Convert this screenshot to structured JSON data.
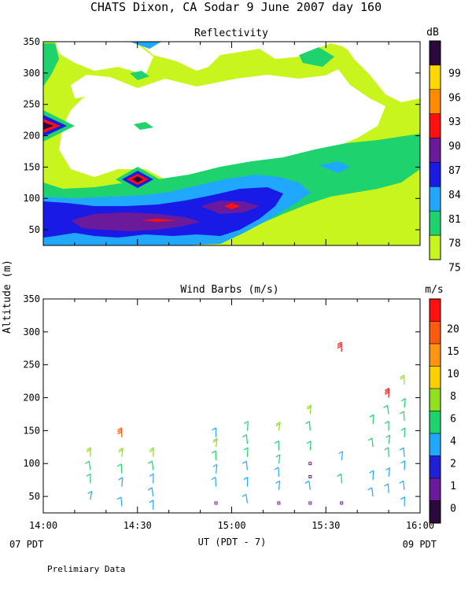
{
  "main_title": "CHATS Dixon, CA  Sodar   9 June 2007  day 160",
  "reflectivity": {
    "title": "Reflectivity",
    "unit": "dB",
    "colorbar": {
      "labels": [
        "99",
        "96",
        "93",
        "90",
        "87",
        "84",
        "81",
        "78",
        "75"
      ],
      "colors": [
        "#2a0a3c",
        "#ffd800",
        "#ff8c00",
        "#ff1010",
        "#6a1a9a",
        "#1a1ae6",
        "#20a8ff",
        "#1ed26e",
        "#c8f51e"
      ]
    },
    "yticks": [
      "350",
      "300",
      "250",
      "200",
      "150",
      "100",
      "50"
    ]
  },
  "wind": {
    "title": "Wind Barbs (m/s)",
    "unit": "m/s",
    "colorbar": {
      "labels": [
        "20",
        "15",
        "10",
        "8",
        "6",
        "4",
        "2",
        "1",
        "0"
      ],
      "colors": [
        "#ff1010",
        "#ff5a10",
        "#ff9410",
        "#ffd000",
        "#90e020",
        "#1ed26e",
        "#20a8ff",
        "#2020d8",
        "#6a1a9a",
        "#2a0a3c"
      ]
    },
    "yticks": [
      "350",
      "300",
      "250",
      "200",
      "150",
      "100",
      "50"
    ]
  },
  "ylabel": "Altitude (m)",
  "xticks": [
    "14:00",
    "14:30",
    "15:00",
    "15:30",
    "16:00"
  ],
  "xlabel": "UT  (PDT - 7)",
  "date_left": "07 PDT",
  "date_right": "09 PDT",
  "footer": "Prelimiary Data",
  "chart_data": [
    {
      "type": "heatmap",
      "title": "Reflectivity",
      "colorbar_unit": "dB",
      "colorbar_ticks": [
        75,
        78,
        81,
        84,
        87,
        90,
        93,
        96,
        99
      ],
      "ylabel": "Altitude (m)",
      "xlabel": "UT  (PDT - 7)",
      "xlim": [
        "14:00",
        "16:00"
      ],
      "ylim": [
        25,
        350
      ],
      "yticks": [
        50,
        100,
        150,
        200,
        250,
        300,
        350
      ]
    },
    {
      "type": "scatter",
      "title": "Wind Barbs (m/s)",
      "colorbar_unit": "m/s",
      "colorbar_ticks": [
        0,
        1,
        2,
        4,
        6,
        8,
        10,
        15,
        20
      ],
      "ylabel": "Altitude (m)",
      "xlabel": "UT  (PDT - 7)",
      "xlim": [
        "14:00",
        "16:00"
      ],
      "ylim": [
        25,
        350
      ],
      "yticks": [
        50,
        100,
        150,
        200,
        250,
        300,
        350
      ],
      "columns": [
        {
          "x": "14:15",
          "altitudes": [
            45,
            70,
            90,
            110
          ],
          "speeds": [
            2,
            4,
            4,
            6
          ]
        },
        {
          "x": "14:25",
          "altitudes": [
            35,
            65,
            85,
            110,
            140
          ],
          "speeds": [
            2,
            2,
            4,
            6,
            15
          ]
        },
        {
          "x": "14:35",
          "altitudes": [
            30,
            50,
            70,
            90,
            110
          ],
          "speeds": [
            2,
            2,
            2,
            4,
            6
          ]
        },
        {
          "x": "14:55",
          "altitudes": [
            40,
            65,
            85,
            105,
            125,
            140
          ],
          "speeds": [
            0,
            2,
            2,
            4,
            6,
            2
          ]
        },
        {
          "x": "15:05",
          "altitudes": [
            40,
            65,
            90,
            110,
            130,
            150
          ],
          "speeds": [
            2,
            2,
            2,
            4,
            4,
            4
          ]
        },
        {
          "x": "15:15",
          "altitudes": [
            40,
            60,
            80,
            100,
            120,
            150
          ],
          "speeds": [
            0,
            2,
            2,
            4,
            4,
            6
          ]
        },
        {
          "x": "15:25",
          "altitudes": [
            40,
            60,
            80,
            100,
            120,
            150,
            175
          ],
          "speeds": [
            0,
            2,
            0,
            0,
            4,
            4,
            6
          ]
        },
        {
          "x": "15:35",
          "altitudes": [
            40,
            70,
            105,
            270
          ],
          "speeds": [
            0,
            4,
            2,
            20
          ]
        },
        {
          "x": "15:45",
          "altitudes": [
            50,
            75,
            125,
            160
          ],
          "speeds": [
            2,
            2,
            4,
            4
          ]
        },
        {
          "x": "15:50",
          "altitudes": [
            55,
            80,
            110,
            130,
            150,
            175,
            200
          ],
          "speeds": [
            2,
            2,
            4,
            4,
            4,
            4,
            20
          ]
        },
        {
          "x": "15:55",
          "altitudes": [
            35,
            60,
            90,
            110,
            140,
            165,
            185,
            220
          ],
          "speeds": [
            2,
            2,
            2,
            2,
            4,
            4,
            4,
            6
          ]
        }
      ]
    }
  ]
}
